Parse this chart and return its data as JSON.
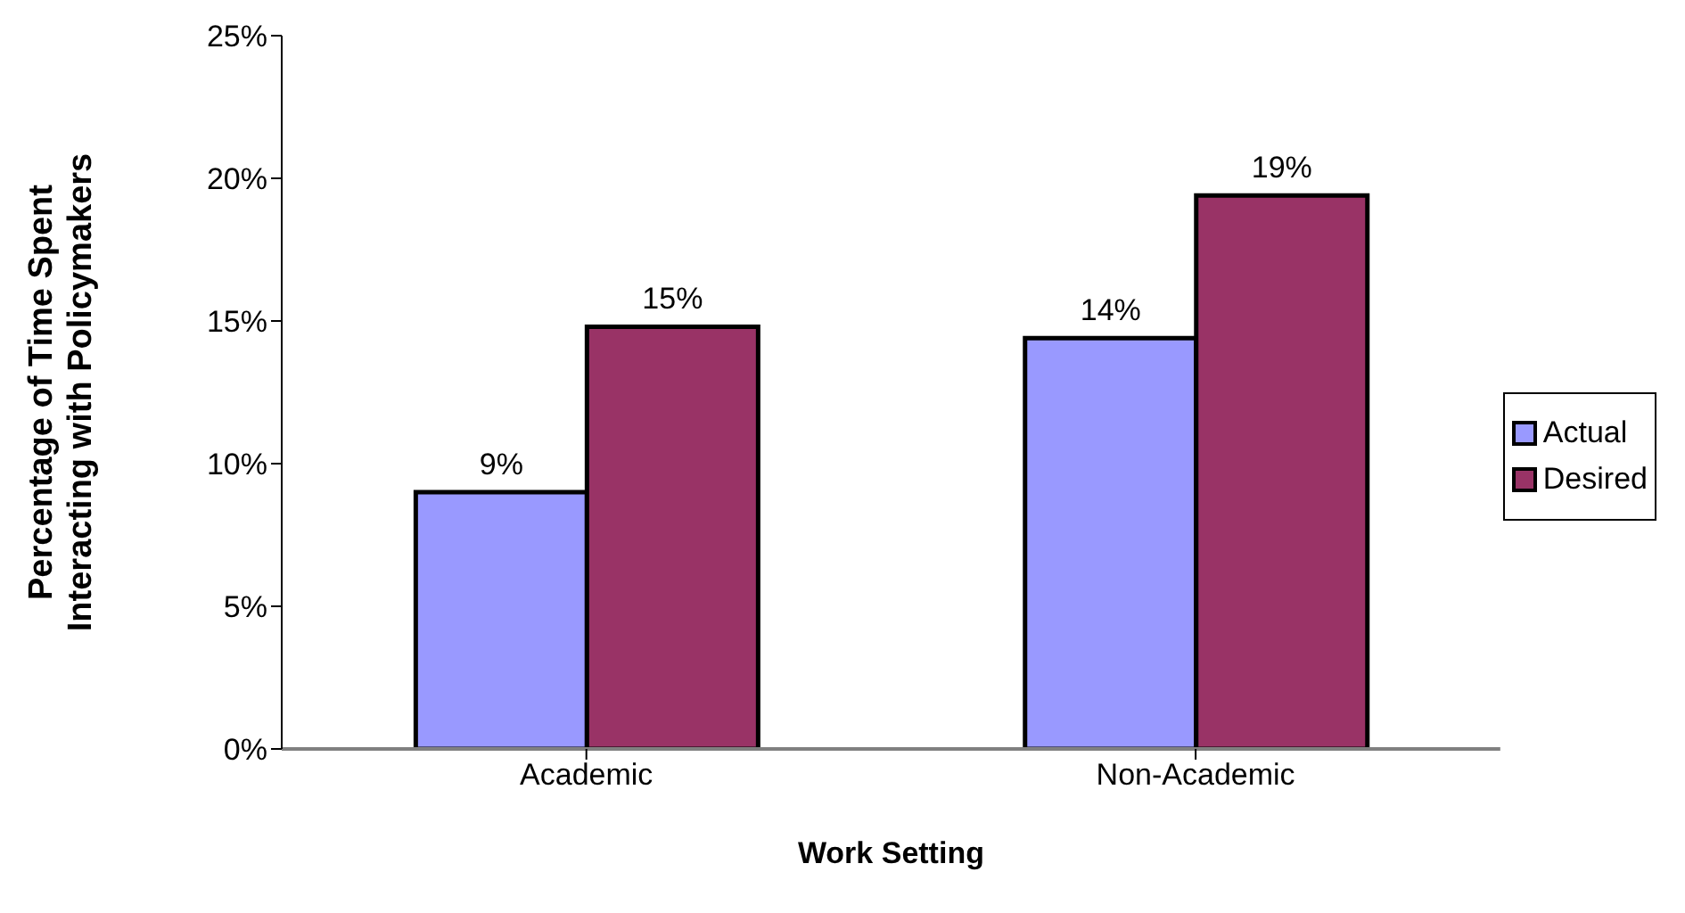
{
  "chart_data": {
    "type": "bar",
    "xlabel": "Work Setting",
    "ylabel": "Percentage of Time Spent\nInteracting with Policymakers",
    "categories": [
      "Academic",
      "Non-Academic"
    ],
    "series": [
      {
        "name": "Actual",
        "color": "#9999ff",
        "values": [
          9,
          14.4
        ],
        "value_labels": [
          "9%",
          "14%"
        ]
      },
      {
        "name": "Desired",
        "color": "#993366",
        "values": [
          14.8,
          19.4
        ],
        "value_labels": [
          "15%",
          "19%"
        ]
      }
    ],
    "ylim": [
      0,
      25
    ],
    "yticks": [
      {
        "value": 0,
        "label": "0%"
      },
      {
        "value": 5,
        "label": "5%"
      },
      {
        "value": 10,
        "label": "10%"
      },
      {
        "value": 15,
        "label": "15%"
      },
      {
        "value": 20,
        "label": "20%"
      },
      {
        "value": 25,
        "label": "25%"
      }
    ],
    "grid": false,
    "legend": "right"
  }
}
